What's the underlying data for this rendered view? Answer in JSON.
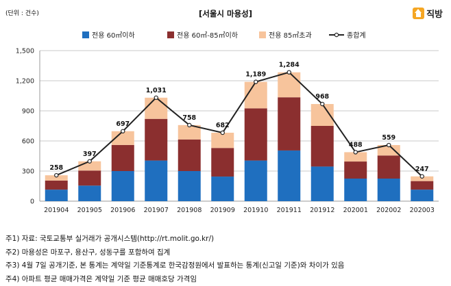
{
  "header": {
    "unit_label": "(단위 : 건수)",
    "title": "[서울시 마용성]",
    "logo_text": "직방"
  },
  "notes": [
    "주1) 자료: 국토교통부 실거래가 공개시스템(http://rt.molit.go.kr/)",
    "주2) 마용성은 마포구, 용산구, 성동구를 포함하여 집계",
    "주3) 4월 7일 공개기준, 본 통계는 계약일 기준통계로 한국감정원에서 발표하는 통계(신고일 기준)와 차이가 있음",
    "주4) 아파트 평균 매매가격은 계약일 기준 평균 매매호당 가격임"
  ],
  "chart_data": {
    "type": "bar",
    "stacked": true,
    "title": "[서울시 마용성]",
    "categories": [
      "201904",
      "201905",
      "201906",
      "201907",
      "201908",
      "201909",
      "201910",
      "201911",
      "201912",
      "202001",
      "202002",
      "202003"
    ],
    "series": [
      {
        "name": "전용 60㎡이하",
        "kind": "bar",
        "color": "#1f6fbf",
        "values": [
          115,
          155,
          300,
          405,
          300,
          245,
          405,
          505,
          345,
          225,
          225,
          115
        ]
      },
      {
        "name": "전용 60㎡-85㎡이하",
        "kind": "bar",
        "color": "#8b2f2f",
        "values": [
          90,
          150,
          260,
          415,
          315,
          285,
          520,
          530,
          405,
          170,
          230,
          85
        ]
      },
      {
        "name": "전용 85㎡초과",
        "kind": "bar",
        "color": "#f7c49c",
        "values": [
          53,
          92,
          137,
          211,
          143,
          152,
          264,
          249,
          218,
          93,
          104,
          47
        ]
      },
      {
        "name": "종합계",
        "kind": "line",
        "color": "#222222",
        "values": [
          258,
          397,
          697,
          1031,
          758,
          682,
          1189,
          1284,
          968,
          488,
          559,
          247
        ]
      }
    ],
    "data_labels": [
      "258",
      "397",
      "697",
      "1,031",
      "758",
      "682",
      "1,189",
      "1,284",
      "968",
      "488",
      "559",
      "247"
    ],
    "yticks": [
      "0",
      "300",
      "600",
      "900",
      "1,200",
      "1,500"
    ],
    "ylim": [
      0,
      1500
    ],
    "ystep": 300,
    "grid": true,
    "legend_position": "top"
  }
}
